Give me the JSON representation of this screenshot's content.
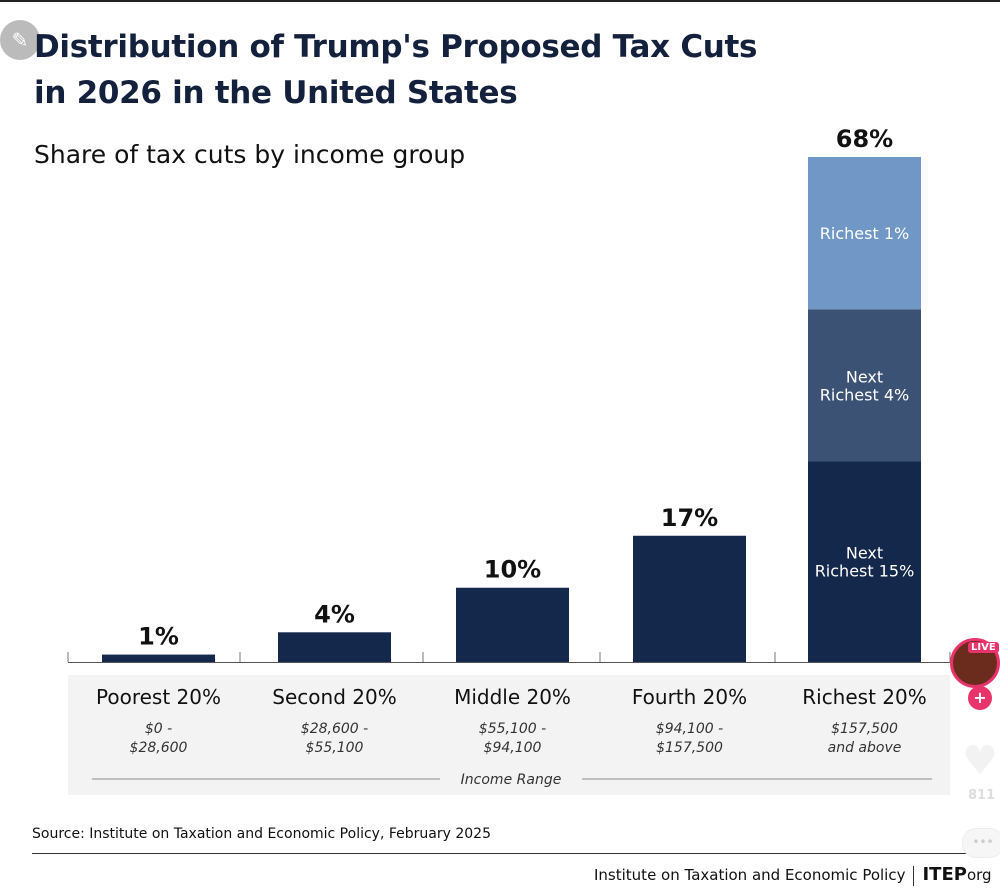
{
  "chart_data": {
    "type": "bar",
    "title_line1": "Distribution of Trump's Proposed Tax Cuts",
    "title_line2": "in 2026 in the United States",
    "subtitle": "Share of tax cuts by income group",
    "xlabel": "Income Range",
    "ylabel": "",
    "ylim": [
      0,
      68
    ],
    "grid": false,
    "categories": [
      "Poorest 20%",
      "Second 20%",
      "Middle 20%",
      "Fourth 20%",
      "Richest 20%"
    ],
    "ranges": [
      [
        "$0 -",
        "$28,600"
      ],
      [
        "$28,600 -",
        "$55,100"
      ],
      [
        "$55,100 -",
        "$94,100"
      ],
      [
        "$94,100 -",
        "$157,500"
      ],
      [
        "$157,500",
        "and above"
      ]
    ],
    "values": [
      1,
      4,
      10,
      17,
      68
    ],
    "value_labels": [
      "1%",
      "4%",
      "10%",
      "17%",
      "68%"
    ],
    "richest_breakdown": [
      {
        "name_lines": [
          "Next",
          "Richest 15%"
        ],
        "value": 27,
        "color": "#14284b"
      },
      {
        "name_lines": [
          "Next",
          "Richest 4%"
        ],
        "value": 20.5,
        "color": "#3b5275"
      },
      {
        "name_lines": [
          "Richest 1%"
        ],
        "value": 20.5,
        "color": "#7097c6"
      }
    ],
    "bar_color": "#14284b"
  },
  "source": "Source: Institute on Taxation and Economic Policy, February 2025",
  "footer": {
    "org": "Institute on Taxation and Economic Policy",
    "brand": "ITEP",
    "brand_suffix": "org"
  },
  "overlay": {
    "live": "LIVE",
    "likes": "811"
  }
}
